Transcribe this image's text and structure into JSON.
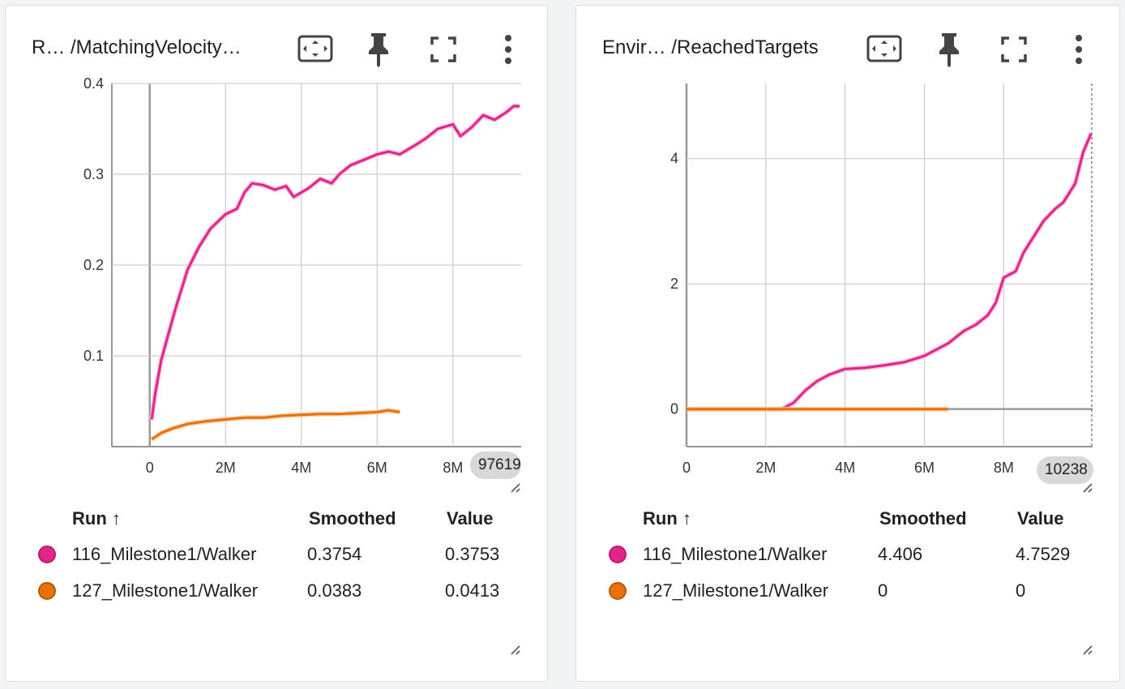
{
  "colors": {
    "pink": "#e3248a",
    "pink_light": "#f3b4d5",
    "orange": "#e8710a",
    "orange_light": "#f5c89b",
    "grid": "#cccccc",
    "axis": "#888888"
  },
  "icons": {
    "fit": "fit-domain-icon",
    "pin": "pin-icon",
    "fullscreen": "fullscreen-icon",
    "more": "more-vert-icon",
    "resize": "resize-handle-icon"
  },
  "table": {
    "header_run": "Run ↑",
    "header_smoothed": "Smoothed",
    "header_value": "Value"
  },
  "cards": [
    {
      "title": "R…  /MatchingVelocity…",
      "hover_step": "97619",
      "rows": [
        {
          "run": "116_Milestone1/Walker",
          "smoothed": "0.3754",
          "value": "0.3753",
          "color": "#e3248a"
        },
        {
          "run": "127_Milestone1/Walker",
          "smoothed": "0.0383",
          "value": "0.0413",
          "color": "#e8710a"
        }
      ],
      "chart_data": {
        "type": "line",
        "x_ticks": [
          "0",
          "2M",
          "4M",
          "6M",
          "8M"
        ],
        "y_ticks": [
          "0.1",
          "0.2",
          "0.3",
          "0.4"
        ],
        "xlim": [
          -1000000,
          9800000
        ],
        "ylim": [
          0,
          0.4
        ],
        "series": [
          {
            "name": "116_Milestone1/Walker",
            "color": "#e3248a",
            "x": [
              50000,
              150000,
              300000,
              500000,
              700000,
              1000000,
              1300000,
              1600000,
              2000000,
              2300000,
              2500000,
              2700000,
              3000000,
              3300000,
              3600000,
              3800000,
              4000000,
              4200000,
              4500000,
              4800000,
              5000000,
              5300000,
              5600000,
              6000000,
              6300000,
              6600000,
              7000000,
              7300000,
              7600000,
              8000000,
              8200000,
              8500000,
              8800000,
              9100000,
              9400000,
              9600000,
              9760000
            ],
            "y": [
              0.03,
              0.06,
              0.095,
              0.125,
              0.155,
              0.195,
              0.22,
              0.24,
              0.256,
              0.262,
              0.28,
              0.29,
              0.288,
              0.283,
              0.287,
              0.275,
              0.28,
              0.285,
              0.295,
              0.29,
              0.3,
              0.31,
              0.315,
              0.322,
              0.325,
              0.322,
              0.332,
              0.34,
              0.35,
              0.355,
              0.342,
              0.352,
              0.365,
              0.36,
              0.368,
              0.375,
              0.375
            ]
          },
          {
            "name": "127_Milestone1/Walker",
            "color": "#e8710a",
            "x": [
              50000,
              300000,
              600000,
              1000000,
              1500000,
              2000000,
              2500000,
              3000000,
              3500000,
              4000000,
              4500000,
              5000000,
              5500000,
              6000000,
              6300000,
              6600000
            ],
            "y": [
              0.008,
              0.015,
              0.02,
              0.025,
              0.028,
              0.03,
              0.032,
              0.032,
              0.034,
              0.035,
              0.036,
              0.036,
              0.037,
              0.038,
              0.04,
              0.038
            ]
          }
        ]
      }
    },
    {
      "title": "Envir…  /ReachedTargets",
      "hover_step": "10238",
      "rows": [
        {
          "run": "116_Milestone1/Walker",
          "smoothed": "4.406",
          "value": "4.7529",
          "color": "#e3248a"
        },
        {
          "run": "127_Milestone1/Walker",
          "smoothed": "0",
          "value": "0",
          "color": "#e8710a"
        }
      ],
      "chart_data": {
        "type": "line",
        "x_ticks": [
          "0",
          "2M",
          "4M",
          "6M",
          "8M"
        ],
        "y_ticks": [
          "0",
          "2",
          "4"
        ],
        "xlim": [
          0,
          10240000
        ],
        "ylim": [
          -0.6,
          5.2
        ],
        "series": [
          {
            "name": "116_Milestone1/Walker",
            "color": "#e3248a",
            "x": [
              0,
              1000000,
              2000000,
              2400000,
              2700000,
              3000000,
              3300000,
              3600000,
              4000000,
              4500000,
              5000000,
              5500000,
              6000000,
              6300000,
              6600000,
              7000000,
              7300000,
              7600000,
              7800000,
              8000000,
              8300000,
              8500000,
              8800000,
              9000000,
              9300000,
              9500000,
              9800000,
              10000000,
              10200000
            ],
            "y": [
              0,
              0,
              0,
              0,
              0.1,
              0.3,
              0.45,
              0.55,
              0.64,
              0.66,
              0.7,
              0.75,
              0.85,
              0.95,
              1.05,
              1.25,
              1.35,
              1.5,
              1.7,
              2.1,
              2.2,
              2.5,
              2.8,
              3.0,
              3.2,
              3.3,
              3.6,
              4.1,
              4.4
            ]
          },
          {
            "name": "127_Milestone1/Walker",
            "color": "#e8710a",
            "x": [
              0,
              1000000,
              2000000,
              3000000,
              4000000,
              5000000,
              6000000,
              6600000
            ],
            "y": [
              0,
              0,
              0,
              0,
              0,
              0,
              0,
              0
            ]
          }
        ]
      }
    }
  ]
}
